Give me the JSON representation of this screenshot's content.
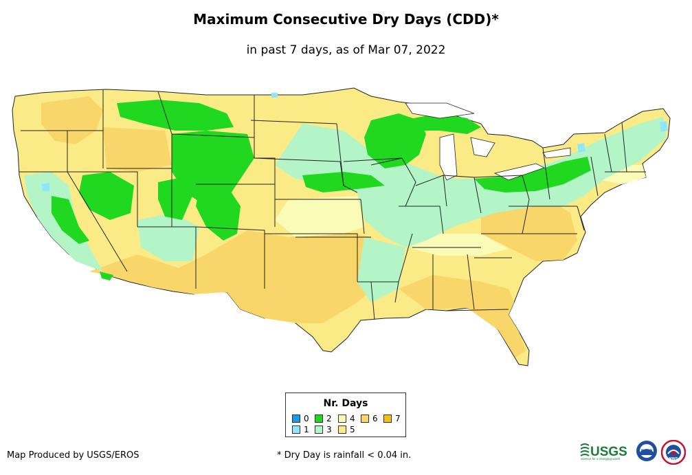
{
  "title": "Maximum Consecutive Dry Days (CDD)*",
  "subtitle": "in past 7 days, as of Mar 07, 2022",
  "legend": {
    "title": "Nr. Days",
    "items": [
      {
        "label": "0",
        "color": "#1b9ae8"
      },
      {
        "label": "1",
        "color": "#8fe7ff"
      },
      {
        "label": "2",
        "color": "#1fd81f"
      },
      {
        "label": "3",
        "color": "#b4f5c8"
      },
      {
        "label": "4",
        "color": "#fbfbb8"
      },
      {
        "label": "5",
        "color": "#fbeb86"
      },
      {
        "label": "6",
        "color": "#f8d66a"
      },
      {
        "label": "7",
        "color": "#f4c010"
      }
    ]
  },
  "credit": "Map Produced by USGS/EROS",
  "footnote": "* Dry Day is rainfall < 0.04 in.",
  "logos": {
    "usgs": "USGS",
    "usgs_tagline": "science for a changing world",
    "noaa": "noaa",
    "nws": "NWS"
  }
}
